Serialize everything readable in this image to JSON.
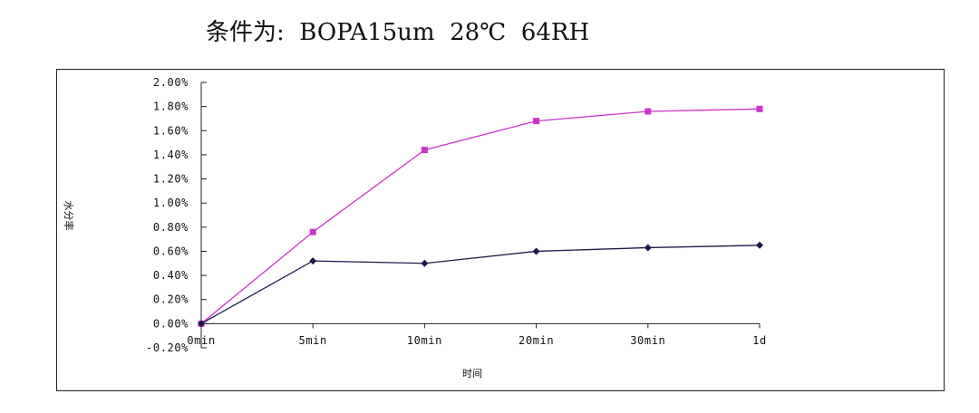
{
  "header": {
    "title": "条件为:  BOPA15um  28℃  64RH"
  },
  "chart_data": {
    "type": "line",
    "title": "条件为:  BOPA15um  28℃  64RH",
    "xlabel": "时间",
    "ylabel": "水分率",
    "categories": [
      "0min",
      "5min",
      "10min",
      "20min",
      "30min",
      "1d"
    ],
    "ylim": [
      -0.2,
      2.0
    ],
    "yticks": [
      -0.2,
      0.0,
      0.2,
      0.4,
      0.6,
      0.8,
      1.0,
      1.2,
      1.4,
      1.6,
      1.8,
      2.0
    ],
    "ytick_labels": [
      "-0.20%",
      "0.00%",
      "0.20%",
      "0.40%",
      "0.60%",
      "0.80%",
      "1.00%",
      "1.20%",
      "1.40%",
      "1.60%",
      "1.80%",
      "2.00%"
    ],
    "grid": false,
    "legend": "none",
    "series": [
      {
        "values": [
          0.0,
          0.76,
          1.44,
          1.68,
          1.76,
          1.78
        ],
        "color": "#cc33cc",
        "marker": "square"
      },
      {
        "values": [
          0.0,
          0.52,
          0.5,
          0.6,
          0.63,
          0.65
        ],
        "color": "#1a1a4a",
        "marker": "diamond"
      }
    ]
  }
}
